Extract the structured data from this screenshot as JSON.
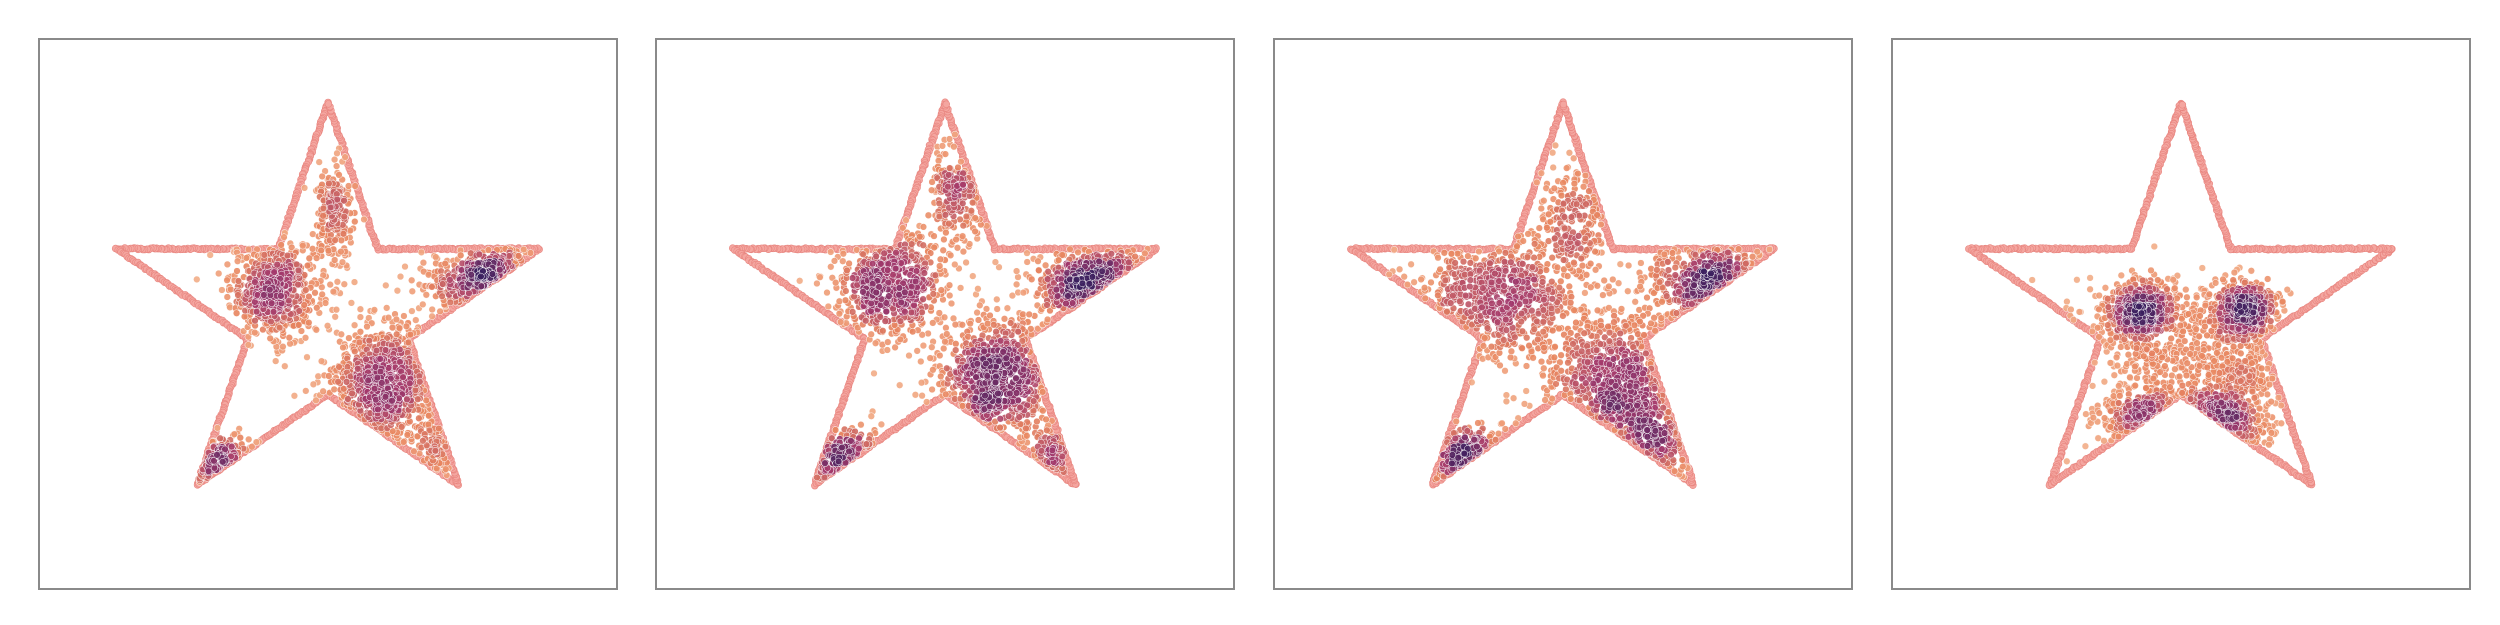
{
  "colors": {
    "boundary": "#f4a6a0",
    "boundary_edge": "#e8857f",
    "density_high": "#3b1f5e",
    "density_mid": "#a3396b",
    "density_low": "#e8855f",
    "density_edge": "#f3b08a",
    "frame": "#8a8a8a"
  },
  "chart_data": [
    {
      "type": "scatter",
      "panel": 1,
      "boundary": "star",
      "xlim": [
        -1.25,
        1.25
      ],
      "ylim": [
        -1.25,
        1.25
      ],
      "grid": false,
      "clusters": [
        {
          "cx": -0.24,
          "cy": 0.12,
          "sx": 0.1,
          "sy": 0.12,
          "weight": 120
        },
        {
          "cx": 0.26,
          "cy": -0.34,
          "sx": 0.13,
          "sy": 0.15,
          "weight": 160
        },
        {
          "cx": 0.75,
          "cy": 0.15,
          "sx": 0.14,
          "sy": 0.08,
          "weight": 90
        },
        {
          "cx": -0.48,
          "cy": -0.72,
          "sx": 0.1,
          "sy": 0.06,
          "weight": 40
        },
        {
          "cx": 0.03,
          "cy": 0.47,
          "sx": 0.04,
          "sy": 0.12,
          "weight": 40
        },
        {
          "cx": 0.48,
          "cy": -0.65,
          "sx": 0.03,
          "sy": 0.08,
          "weight": 15
        }
      ]
    },
    {
      "type": "scatter",
      "panel": 2,
      "boundary": "star",
      "xlim": [
        -1.25,
        1.25
      ],
      "ylim": [
        -1.25,
        1.25
      ],
      "grid": false,
      "clusters": [
        {
          "cx": -0.25,
          "cy": 0.14,
          "sx": 0.13,
          "sy": 0.13,
          "weight": 130
        },
        {
          "cx": 0.24,
          "cy": -0.3,
          "sx": 0.14,
          "sy": 0.15,
          "weight": 160
        },
        {
          "cx": 0.72,
          "cy": 0.14,
          "sx": 0.15,
          "sy": 0.09,
          "weight": 90
        },
        {
          "cx": -0.45,
          "cy": -0.7,
          "sx": 0.11,
          "sy": 0.07,
          "weight": 40
        },
        {
          "cx": 0.05,
          "cy": 0.55,
          "sx": 0.06,
          "sy": 0.1,
          "weight": 40
        },
        {
          "cx": 0.48,
          "cy": -0.68,
          "sx": 0.04,
          "sy": 0.08,
          "weight": 20
        }
      ]
    },
    {
      "type": "scatter",
      "panel": 3,
      "boundary": "star",
      "xlim": [
        -1.25,
        1.25
      ],
      "ylim": [
        -1.25,
        1.25
      ],
      "grid": false,
      "clusters": [
        {
          "cx": -0.3,
          "cy": 0.1,
          "sx": 0.17,
          "sy": 0.15,
          "weight": 140
        },
        {
          "cx": 0.25,
          "cy": -0.32,
          "sx": 0.18,
          "sy": 0.2,
          "weight": 170
        },
        {
          "cx": 0.7,
          "cy": 0.14,
          "sx": 0.15,
          "sy": 0.1,
          "weight": 80
        },
        {
          "cx": -0.4,
          "cy": -0.72,
          "sx": 0.11,
          "sy": 0.08,
          "weight": 45
        },
        {
          "cx": 0.05,
          "cy": 0.45,
          "sx": 0.08,
          "sy": 0.14,
          "weight": 45
        },
        {
          "cx": 0.42,
          "cy": -0.62,
          "sx": 0.1,
          "sy": 0.1,
          "weight": 35
        }
      ]
    },
    {
      "type": "scatter",
      "panel": 4,
      "boundary": "star",
      "xlim": [
        -1.25,
        1.25
      ],
      "ylim": [
        -1.25,
        1.25
      ],
      "grid": false,
      "clusters": [
        {
          "cx": -0.18,
          "cy": 0.02,
          "sx": 0.08,
          "sy": 0.07,
          "weight": 110
        },
        {
          "cx": 0.28,
          "cy": 0.02,
          "sx": 0.08,
          "sy": 0.07,
          "weight": 110
        },
        {
          "cx": 0.02,
          "cy": -0.52,
          "sx": 0.14,
          "sy": 0.06,
          "weight": 130
        },
        {
          "cx": -0.05,
          "cy": -0.18,
          "sx": 0.22,
          "sy": 0.16,
          "weight": 90
        },
        {
          "cx": 0.25,
          "cy": -0.3,
          "sx": 0.1,
          "sy": 0.1,
          "weight": 40
        }
      ]
    }
  ]
}
